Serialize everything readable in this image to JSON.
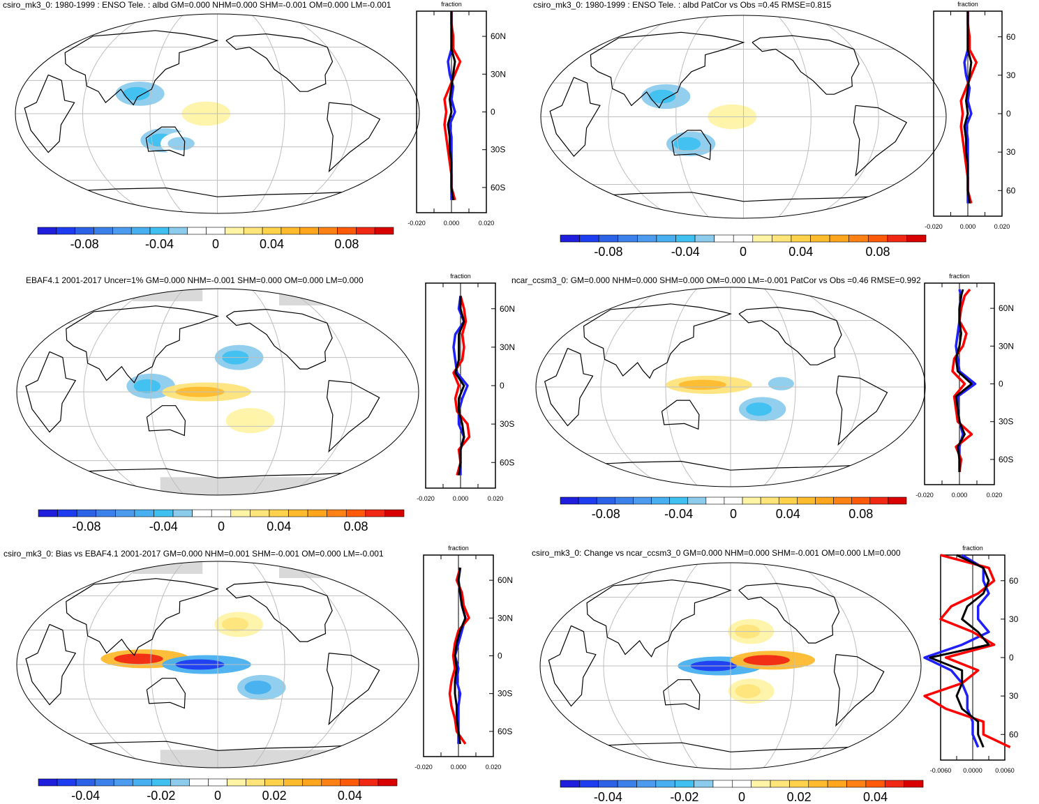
{
  "colors": {
    "scale": [
      "#1e1edc",
      "#1e3cf0",
      "#2c62e6",
      "#3c80ea",
      "#4d9bee",
      "#48b0f0",
      "#3fc0f0",
      "#8ccbec",
      "#ffffff",
      "#ffffff",
      "#fff3a6",
      "#ffe47a",
      "#ffd24b",
      "#ffbb2e",
      "#ffa51e",
      "#ff8014",
      "#ff5a0a",
      "#f02814",
      "#d90000"
    ],
    "land": "#000000",
    "grid": "#bebebe",
    "missing": "#d9d9d9",
    "profile_series": [
      "#2020ff",
      "#ff0000",
      "#000000"
    ]
  },
  "panels": [
    {
      "id": "top-left",
      "title": "csiro_mk3_0: 1980-1999 : ENSO Tele. : albd GM=0.000 NHM=0.000 SHM=-0.001 OM=0.000 LM=-0.001",
      "profile_label": "fraction",
      "lat_labels": [
        "60N",
        "30N",
        "0",
        "30S",
        "60S"
      ],
      "profile_ticks": [
        "-0.020",
        "0.000",
        "0.020"
      ],
      "colorbar_labels": [
        "-0.08",
        "-0.04",
        "0",
        "0.04",
        "0.08"
      ]
    },
    {
      "id": "top-right",
      "title": "csiro_mk3_0: 1980-1999 : ENSO Tele. : albd PatCor vs Obs =0.45 RMSE=0.815",
      "profile_label": "fraction",
      "lat_labels": [
        "60",
        "30",
        "0",
        "30",
        "60"
      ],
      "profile_ticks": [
        "-0.020",
        "0.000",
        "0.020"
      ],
      "colorbar_labels": [
        "-0.08",
        "-0.04",
        "0",
        "0.04",
        "0.08"
      ]
    },
    {
      "id": "mid-left",
      "title": "EBAF4.1 2001-2017 Uncer=1% GM=0.000 NHM=-0.001 SHM=0.000 OM=0.000 LM=0.000",
      "profile_label": "fraction",
      "lat_labels": [
        "60N",
        "30N",
        "0",
        "30S",
        "60S"
      ],
      "profile_ticks": [
        "-0.020",
        "0.000",
        "0.020"
      ],
      "colorbar_labels": [
        "-0.08",
        "-0.04",
        "0",
        "0.04",
        "0.08"
      ]
    },
    {
      "id": "mid-right",
      "title": "ncar_ccsm3_0: GM=0.000 NHM=0.000 SHM=0.000 OM=0.000 LM=-0.001 PatCor vs Obs =0.46 RMSE=0.992",
      "profile_label": "fraction",
      "lat_labels": [
        "60N",
        "30N",
        "0",
        "30S",
        "60S"
      ],
      "profile_ticks": [
        "-0.020",
        "0.000",
        "0.020"
      ],
      "colorbar_labels": [
        "-0.08",
        "-0.04",
        "0",
        "0.04",
        "0.08"
      ]
    },
    {
      "id": "bottom-left",
      "title": "csiro_mk3_0: Bias vs EBAF4.1 2001-2017 GM=0.000 NHM=0.001 SHM=-0.001 OM=0.000 LM=-0.001",
      "profile_label": "fraction",
      "lat_labels": [
        "60N",
        "30N",
        "0",
        "30S",
        "60S"
      ],
      "profile_ticks": [
        "-0.020",
        "0.000",
        "0.020"
      ],
      "colorbar_labels": [
        "-0.04",
        "-0.02",
        "0",
        "0.02",
        "0.04"
      ]
    },
    {
      "id": "bottom-right",
      "title": "csiro_mk3_0: Change vs ncar_ccsm3_0 GM=0.000 NHM=0.000 SHM=-0.001 OM=0.000 LM=0.000",
      "profile_label": "fraction",
      "lat_labels": [
        "60",
        "30",
        "0",
        "30",
        "60"
      ],
      "profile_ticks": [
        "-0.0060",
        "0.0000",
        "0.0060"
      ],
      "colorbar_labels": [
        "-0.04",
        "-0.02",
        "0",
        "0.02",
        "0.04"
      ]
    }
  ],
  "chart_data": [
    {
      "type": "heatmap",
      "title": "csiro_mk3_0: 1980-1999 : ENSO Tele. : albd GM=0.000 NHM=0.000 SHM=-0.001 OM=0.000 LM=-0.001",
      "colorbar": {
        "ticks": [
          -0.08,
          -0.04,
          0,
          0.04,
          0.08
        ]
      },
      "anomalies": [
        {
          "lon": 110,
          "lat": 18,
          "value": -0.03
        },
        {
          "lon": 132,
          "lat": -24,
          "value": -0.03
        },
        {
          "lon": 170,
          "lat": 0,
          "value": 0.01
        },
        {
          "lon": 150,
          "lat": -27,
          "value": -0.02
        }
      ],
      "zonal_profile": {
        "xlim": [
          -0.02,
          0.02
        ],
        "lat": [
          80,
          70,
          60,
          50,
          40,
          30,
          20,
          10,
          0,
          -10,
          -20,
          -30,
          -40,
          -50,
          -60,
          -70
        ],
        "series": [
          {
            "values": [
              0.0,
              0.0,
              0.0,
              0.0,
              -0.002,
              -0.001,
              0.001,
              0.0,
              0.002,
              -0.001,
              0.0,
              0.0,
              0.0,
              0.0,
              0.0,
              0.0
            ]
          },
          {
            "values": [
              0.0,
              0.0,
              0.001,
              0.001,
              0.005,
              0.002,
              -0.001,
              -0.004,
              -0.003,
              -0.004,
              -0.003,
              -0.002,
              -0.001,
              0.0,
              0.0,
              0.002
            ]
          },
          {
            "values": [
              0.0,
              0.0,
              0.0,
              0.0,
              0.002,
              0.001,
              0.0,
              -0.001,
              0.0,
              -0.002,
              -0.001,
              -0.001,
              0.0,
              0.0,
              0.0,
              0.001
            ]
          }
        ]
      }
    },
    {
      "type": "heatmap",
      "title": "csiro_mk3_0: 1980-1999 : ENSO Tele. : albd PatCor vs Obs =0.45 RMSE=0.815",
      "colorbar": {
        "ticks": [
          -0.08,
          -0.04,
          0,
          0.04,
          0.08
        ]
      },
      "anomalies": [
        {
          "lon": 110,
          "lat": 18,
          "value": -0.03
        },
        {
          "lon": 132,
          "lat": -24,
          "value": -0.03
        },
        {
          "lon": 170,
          "lat": 0,
          "value": 0.01
        }
      ],
      "zonal_profile": {
        "xlim": [
          -0.02,
          0.02
        ],
        "lat": [
          80,
          70,
          60,
          50,
          40,
          30,
          20,
          10,
          0,
          -10,
          -20,
          -30,
          -40,
          -50,
          -60,
          -70
        ],
        "series": [
          {
            "values": [
              0.0,
              0.0,
              0.0,
              0.0,
              -0.002,
              -0.001,
              0.001,
              0.0,
              0.002,
              -0.001,
              0.0,
              0.0,
              0.0,
              0.0,
              0.0,
              0.0
            ]
          },
          {
            "values": [
              0.0,
              0.0,
              0.001,
              0.001,
              0.005,
              0.002,
              -0.001,
              -0.004,
              -0.003,
              -0.004,
              -0.003,
              -0.002,
              -0.001,
              0.0,
              0.0,
              0.002
            ]
          },
          {
            "values": [
              0.0,
              0.0,
              0.0,
              0.0,
              0.002,
              0.001,
              0.0,
              -0.001,
              0.0,
              -0.002,
              -0.001,
              -0.001,
              0.0,
              0.0,
              0.0,
              0.001
            ]
          }
        ]
      }
    },
    {
      "type": "heatmap",
      "title": "EBAF4.1 2001-2017 Uncer=1% GM=0.000 NHM=-0.001 SHM=0.000 OM=0.000 LM=0.000",
      "colorbar": {
        "ticks": [
          -0.08,
          -0.04,
          0,
          0.04,
          0.08
        ]
      },
      "anomalies": [
        {
          "lon": 120,
          "lat": 5,
          "value": -0.03
        },
        {
          "lon": 170,
          "lat": 0,
          "value": 0.04
        },
        {
          "lon": 210,
          "lat": -25,
          "value": 0.01
        },
        {
          "lon": 200,
          "lat": 30,
          "value": -0.03
        }
      ],
      "zonal_profile": {
        "xlim": [
          -0.02,
          0.02
        ],
        "lat": [
          70,
          60,
          50,
          40,
          30,
          20,
          10,
          0,
          -10,
          -20,
          -30,
          -40,
          -50,
          -60,
          -70
        ],
        "series": [
          {
            "values": [
              0.0,
              -0.001,
              0.002,
              -0.003,
              -0.004,
              -0.003,
              -0.002,
              0.004,
              0.001,
              -0.001,
              -0.001,
              0.002,
              0.0,
              0.0,
              0.0
            ]
          },
          {
            "values": [
              0.0,
              0.002,
              0.003,
              0.001,
              0.002,
              0.001,
              -0.004,
              -0.001,
              -0.003,
              -0.002,
              0.004,
              0.005,
              -0.001,
              0.0,
              -0.002
            ]
          },
          {
            "values": [
              0.0,
              0.0,
              0.002,
              -0.001,
              -0.001,
              -0.001,
              -0.003,
              0.002,
              -0.001,
              -0.001,
              0.001,
              0.002,
              0.0,
              0.0,
              -0.001
            ]
          }
        ]
      }
    },
    {
      "type": "heatmap",
      "title": "ncar_ccsm3_0: GM=0.000 NHM=0.000 SHM=0.000 OM=0.000 LM=-0.001 PatCor vs Obs =0.46 RMSE=0.992",
      "colorbar": {
        "ticks": [
          -0.08,
          -0.04,
          0,
          0.04,
          0.08
        ]
      },
      "anomalies": [
        {
          "lon": 160,
          "lat": 2,
          "value": 0.04
        },
        {
          "lon": 230,
          "lat": 3,
          "value": -0.02
        },
        {
          "lon": 210,
          "lat": -20,
          "value": -0.03
        }
      ],
      "zonal_profile": {
        "xlim": [
          -0.02,
          0.02
        ],
        "lat": [
          75,
          70,
          60,
          50,
          40,
          30,
          20,
          10,
          0,
          -10,
          -20,
          -30,
          -40,
          -50,
          -60,
          -70
        ],
        "series": [
          {
            "values": [
              0.0,
              0.001,
              0.0,
              0.0,
              -0.001,
              -0.002,
              -0.001,
              0.0,
              0.009,
              -0.001,
              -0.001,
              0.0,
              0.002,
              0.0,
              0.0,
              0.0
            ]
          },
          {
            "values": [
              0.006,
              0.003,
              0.001,
              0.0,
              0.004,
              0.002,
              -0.003,
              -0.004,
              0.003,
              -0.003,
              -0.002,
              -0.001,
              0.007,
              -0.002,
              0.001,
              0.0
            ]
          },
          {
            "values": [
              0.002,
              0.001,
              0.0,
              0.0,
              0.001,
              0.0,
              -0.002,
              -0.001,
              0.007,
              -0.002,
              -0.001,
              0.0,
              0.003,
              -0.001,
              0.0,
              0.0
            ]
          }
        ]
      }
    },
    {
      "type": "heatmap",
      "title": "csiro_mk3_0: Bias vs EBAF4.1 2001-2017 GM=0.000 NHM=0.001 SHM=-0.001 OM=0.000 LM=-0.001",
      "colorbar": {
        "ticks": [
          -0.04,
          -0.02,
          0,
          0.02,
          0.04
        ]
      },
      "anomalies": [
        {
          "lon": 115,
          "lat": 5,
          "value": 0.04
        },
        {
          "lon": 170,
          "lat": 0,
          "value": -0.04
        },
        {
          "lon": 200,
          "lat": 35,
          "value": 0.01
        },
        {
          "lon": 220,
          "lat": -20,
          "value": -0.02
        }
      ],
      "zonal_profile": {
        "xlim": [
          -0.02,
          0.02
        ],
        "lat": [
          70,
          60,
          50,
          40,
          30,
          20,
          10,
          0,
          -10,
          -20,
          -30,
          -40,
          -50,
          -60,
          -70
        ],
        "series": [
          {
            "values": [
              0.001,
              0.0,
              0.001,
              0.002,
              0.004,
              0.002,
              0.0,
              -0.002,
              0.0,
              -0.001,
              0.001,
              0.0,
              0.0,
              0.0,
              0.0
            ]
          },
          {
            "values": [
              0.001,
              -0.001,
              0.002,
              0.003,
              0.006,
              0.0,
              -0.002,
              -0.003,
              -0.002,
              -0.004,
              -0.005,
              -0.004,
              -0.002,
              -0.001,
              0.004
            ]
          },
          {
            "values": [
              0.001,
              0.0,
              0.001,
              0.002,
              0.004,
              0.001,
              -0.001,
              -0.002,
              -0.001,
              -0.002,
              -0.002,
              -0.001,
              -0.001,
              0.0,
              0.001
            ]
          }
        ]
      }
    },
    {
      "type": "heatmap",
      "title": "csiro_mk3_0: Change vs ncar_ccsm3_0 GM=0.000 NHM=0.000 SHM=-0.001 OM=0.000 LM=0.000",
      "colorbar": {
        "ticks": [
          -0.04,
          -0.02,
          0,
          0.02,
          0.04
        ]
      },
      "anomalies": [
        {
          "lon": 170,
          "lat": 0,
          "value": -0.04
        },
        {
          "lon": 220,
          "lat": 5,
          "value": 0.04
        },
        {
          "lon": 200,
          "lat": 30,
          "value": 0.01
        },
        {
          "lon": 200,
          "lat": -22,
          "value": 0.01
        }
      ],
      "zonal_profile": {
        "xlim": [
          -0.006,
          0.006
        ],
        "lat": [
          80,
          70,
          60,
          50,
          40,
          30,
          20,
          10,
          0,
          -10,
          -20,
          -30,
          -40,
          -50,
          -60,
          -70
        ],
        "series": [
          {
            "values": [
              -0.002,
              0.002,
              0.002,
              0.003,
              0.001,
              0.001,
              0.003,
              -0.002,
              -0.009,
              -0.004,
              -0.002,
              -0.001,
              -0.001,
              0.0,
              0.0,
              0.001
            ]
          },
          {
            "values": [
              -0.006,
              0.003,
              0.004,
              0.001,
              -0.004,
              -0.006,
              0.0,
              0.004,
              -0.005,
              0.001,
              -0.002,
              -0.009,
              -0.005,
              0.002,
              0.002,
              0.007
            ]
          },
          {
            "values": [
              -0.003,
              0.002,
              0.003,
              0.002,
              -0.001,
              -0.002,
              0.001,
              0.003,
              -0.008,
              -0.002,
              -0.002,
              -0.003,
              -0.002,
              0.001,
              0.001,
              0.002
            ]
          }
        ]
      }
    }
  ]
}
